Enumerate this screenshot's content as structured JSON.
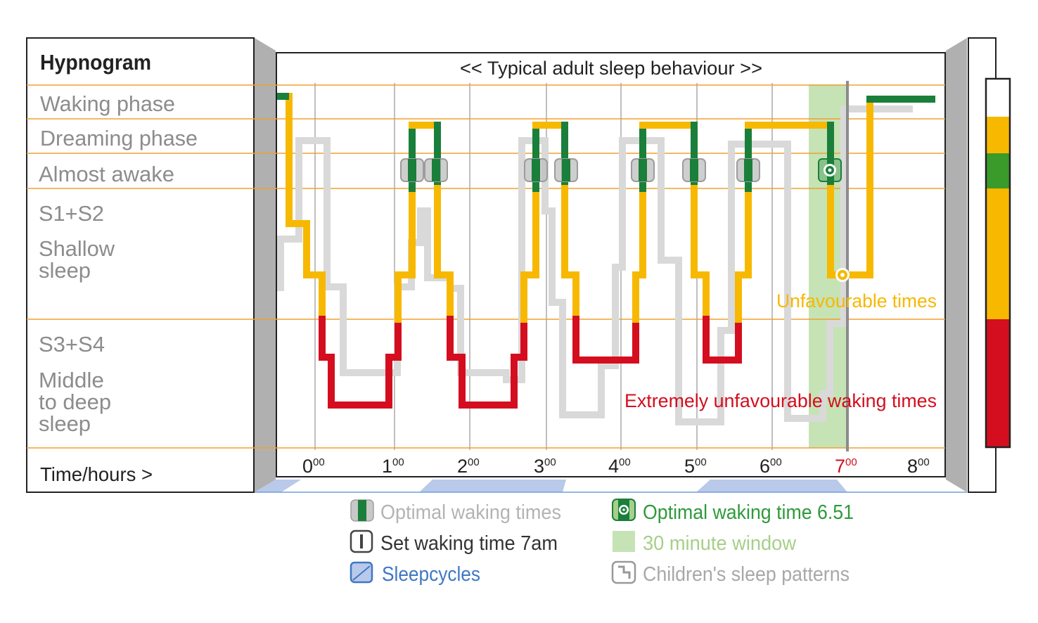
{
  "left_panel": {
    "title": "Hypnogram",
    "rows": [
      "Waking phase",
      "Dreaming phase",
      "Almost awake",
      "S1+S2",
      "Shallow",
      "sleep",
      "S3+S4",
      "Middle",
      "to deep",
      "sleep"
    ],
    "footer": "Time/hours >"
  },
  "chart": {
    "title": "<< Typical adult sleep behaviour >>",
    "hours": [
      "0",
      "1",
      "2",
      "3",
      "4",
      "5",
      "6",
      "7",
      "8"
    ],
    "minutes_sup": "00",
    "label_unfavourable": "Unfavourable times",
    "label_extremely": "Extremely unfavourable waking times"
  },
  "colors": {
    "green": "#1a7f3a",
    "yellow": "#f7b800",
    "red": "#d40e1f",
    "grey": "#dadada",
    "window": "#c6e3b5",
    "orange_line": "#f0a030",
    "light_green": "#a6cf8a",
    "blue": "#3f78c4",
    "cycle": "#b9c9ea",
    "text_grey": "#8c8c8c"
  },
  "legend": {
    "optimal_times": "Optimal waking times",
    "set_time": "Set waking time 7am",
    "sleepcycles": "Sleepcycles",
    "optimal_time": "Optimal waking time 6.51",
    "window": "30 minute window",
    "children": "Children's sleep patterns"
  }
}
